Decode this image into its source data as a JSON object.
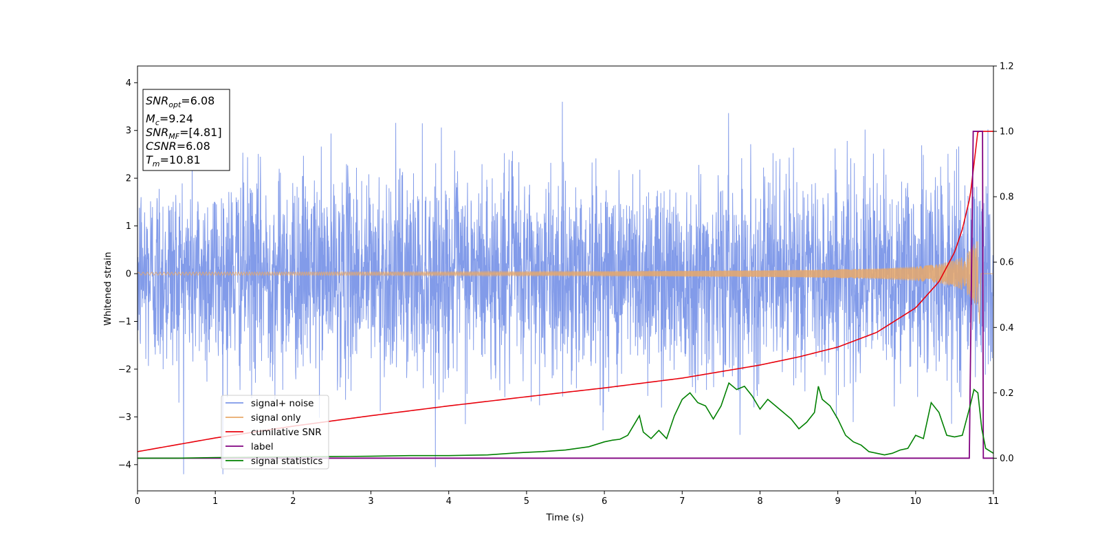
{
  "chart_data": {
    "type": "line",
    "xlabel": "Time (s)",
    "ylabel": "Whitened strain",
    "xlim": [
      0,
      11
    ],
    "ylim_left": [
      -4.55,
      4.35
    ],
    "ylim_right": [
      -0.1,
      1.2
    ],
    "x_ticks": [
      0,
      1,
      2,
      3,
      4,
      5,
      6,
      7,
      8,
      9,
      10,
      11
    ],
    "y_ticks_left": [
      -4,
      -3,
      -2,
      -1,
      0,
      1,
      2,
      3,
      4
    ],
    "y_ticks_right": [
      0.0,
      0.2,
      0.4,
      0.6,
      0.8,
      1.0,
      1.2
    ],
    "info_box": {
      "snr_opt": "6.08",
      "mc": "9.24",
      "snr_mf": "[4.81]",
      "csnr": "6.08",
      "tm": "10.81"
    },
    "legend_position": "lower-left",
    "series": [
      {
        "name": "signal+ noise",
        "color": "#7b96e8",
        "axis": "left",
        "description_values": "dense noise, roughly within [-4.1, 4.0]"
      },
      {
        "name": "signal only",
        "color": "#e8a86a",
        "axis": "left",
        "x": [
          0,
          2,
          4,
          6,
          7,
          8,
          9,
          9.5,
          10,
          10.3,
          10.5,
          10.6,
          10.7,
          10.75,
          10.78,
          10.8
        ],
        "envelope": [
          0.03,
          0.035,
          0.04,
          0.05,
          0.06,
          0.07,
          0.09,
          0.11,
          0.15,
          0.2,
          0.28,
          0.35,
          0.5,
          0.62,
          0.68,
          0.7
        ]
      },
      {
        "name": "cumilative SNR",
        "color": "#e8000b",
        "axis": "right",
        "x": [
          0,
          1,
          2,
          3,
          4,
          5,
          6,
          7,
          7.5,
          8,
          8.5,
          9,
          9.5,
          10,
          10.3,
          10.5,
          10.6,
          10.7,
          10.8,
          11
        ],
        "values": [
          0.02,
          0.062,
          0.098,
          0.13,
          0.16,
          0.188,
          0.215,
          0.245,
          0.265,
          0.285,
          0.31,
          0.34,
          0.385,
          0.46,
          0.54,
          0.63,
          0.7,
          0.8,
          1.0,
          1.0
        ]
      },
      {
        "name": "label",
        "color": "#800080",
        "axis": "right",
        "x": [
          0,
          10.69,
          10.74,
          10.86,
          10.87,
          11
        ],
        "values": [
          0,
          0,
          1,
          1,
          0,
          0
        ]
      },
      {
        "name": "signal statistics",
        "color": "#008000",
        "axis": "right",
        "x": [
          0,
          0.5,
          1,
          1.5,
          2,
          2.5,
          3,
          3.5,
          4,
          4.5,
          4.8,
          5,
          5.2,
          5.5,
          5.8,
          6,
          6.1,
          6.2,
          6.3,
          6.45,
          6.5,
          6.6,
          6.7,
          6.8,
          6.9,
          7,
          7.1,
          7.2,
          7.3,
          7.4,
          7.5,
          7.6,
          7.7,
          7.8,
          7.9,
          8,
          8.1,
          8.2,
          8.3,
          8.4,
          8.5,
          8.6,
          8.7,
          8.75,
          8.8,
          8.9,
          9,
          9.1,
          9.2,
          9.3,
          9.4,
          9.5,
          9.6,
          9.7,
          9.8,
          9.9,
          10,
          10.1,
          10.2,
          10.3,
          10.4,
          10.5,
          10.6,
          10.7,
          10.75,
          10.8,
          10.85,
          10.9,
          11
        ],
        "values": [
          0.0,
          0.0,
          0.002,
          0.003,
          0.004,
          0.005,
          0.006,
          0.008,
          0.008,
          0.01,
          0.015,
          0.018,
          0.02,
          0.025,
          0.035,
          0.05,
          0.055,
          0.058,
          0.07,
          0.13,
          0.08,
          0.06,
          0.085,
          0.06,
          0.13,
          0.18,
          0.2,
          0.17,
          0.16,
          0.12,
          0.16,
          0.23,
          0.21,
          0.22,
          0.19,
          0.15,
          0.18,
          0.16,
          0.14,
          0.12,
          0.09,
          0.11,
          0.14,
          0.22,
          0.18,
          0.16,
          0.12,
          0.07,
          0.05,
          0.04,
          0.02,
          0.015,
          0.01,
          0.015,
          0.025,
          0.03,
          0.07,
          0.06,
          0.17,
          0.14,
          0.07,
          0.065,
          0.07,
          0.16,
          0.21,
          0.2,
          0.09,
          0.03,
          0.015
        ]
      }
    ]
  }
}
